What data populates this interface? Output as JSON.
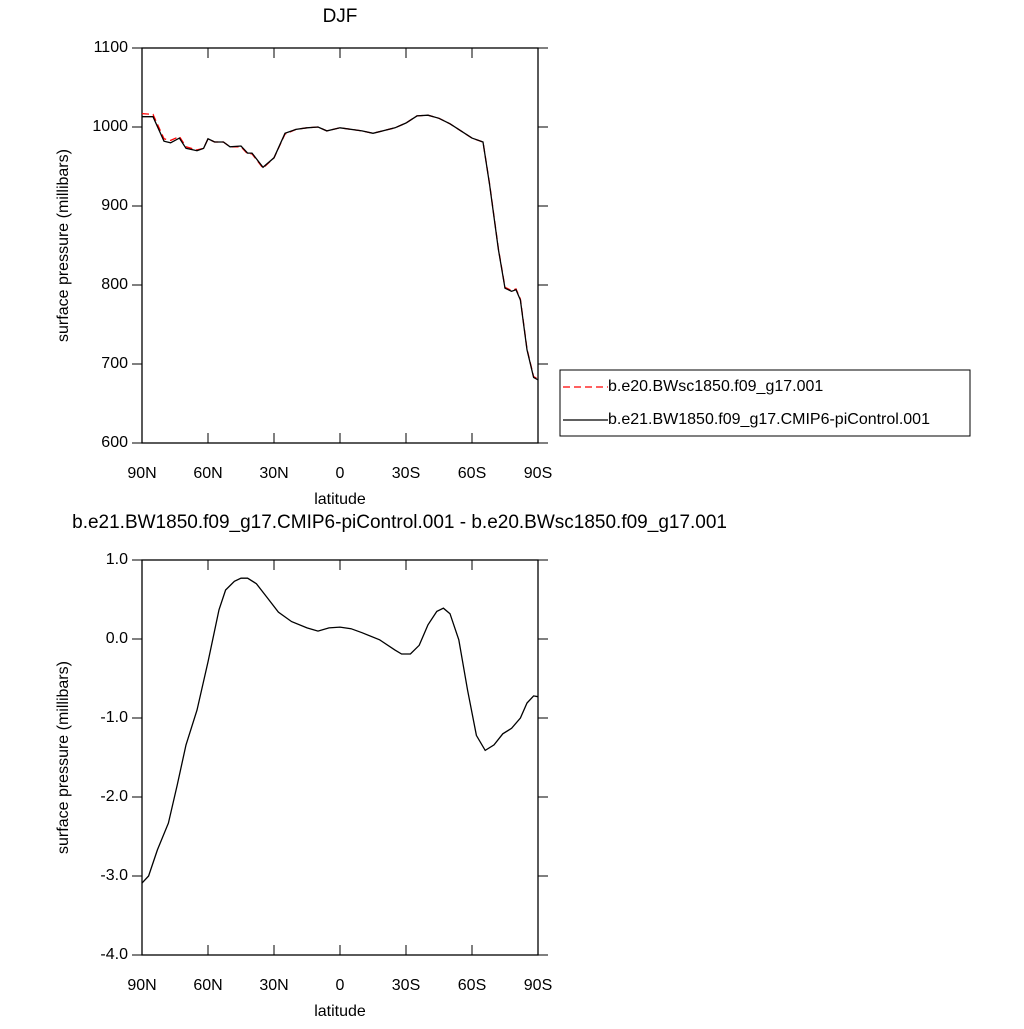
{
  "chart_data": [
    {
      "type": "line",
      "title": "DJF",
      "xlabel": "latitude",
      "ylabel": "surface pressure (millibars)",
      "x": [
        90,
        85,
        80,
        77,
        73,
        70,
        65,
        62,
        60,
        57,
        53,
        50,
        45,
        42,
        40,
        35,
        30,
        25,
        20,
        15,
        10,
        6,
        0,
        -10,
        -15,
        -25,
        -30,
        -35,
        -40,
        -45,
        -50,
        -55,
        -60,
        -65,
        -68,
        -72,
        -75,
        -78,
        -80,
        -82,
        -85,
        -88,
        -90
      ],
      "series": [
        {
          "name": "b.e20.BWsc1850.f09_g17.001",
          "color": "#ff0000",
          "dash": true,
          "values": [
            1017,
            1016,
            985,
            983,
            988,
            975,
            971,
            973,
            985,
            981,
            981,
            975,
            975,
            966,
            966,
            948,
            961,
            991,
            997,
            999,
            1000,
            995,
            999,
            995,
            992,
            999,
            1005,
            1014,
            1015,
            1011,
            1004,
            995,
            986,
            981,
            928,
            846,
            797,
            793,
            795,
            782,
            719,
            684,
            681
          ]
        },
        {
          "name": "b.e21.BW1850.f09_g17.CMIP6-piControl.001",
          "color": "#000000",
          "dash": false,
          "values": [
            1013,
            1013,
            982,
            980,
            986,
            973,
            970,
            973,
            985,
            981,
            981,
            975,
            976,
            967,
            967,
            949,
            961,
            992,
            997,
            999,
            1000,
            995,
            999,
            995,
            992,
            999,
            1005,
            1014,
            1015,
            1011,
            1004,
            995,
            986,
            981,
            927,
            845,
            796,
            792,
            794,
            781,
            718,
            683,
            680
          ]
        }
      ],
      "legend": "right",
      "xlim": [
        90,
        -90
      ],
      "xticks": [
        {
          "value": 90,
          "label": "90N"
        },
        {
          "value": 60,
          "label": "60N"
        },
        {
          "value": 30,
          "label": "30N"
        },
        0,
        {
          "value": -30,
          "label": "30S"
        },
        {
          "value": -60,
          "label": "60S"
        },
        {
          "value": -90,
          "label": "90S"
        }
      ],
      "ylim": [
        600,
        1100
      ],
      "yticks": [
        600,
        700,
        800,
        900,
        1000,
        1100
      ]
    },
    {
      "type": "line",
      "title": "b.e21.BW1850.f09_g17.CMIP6-piControl.001 - b.e20.BWsc1850.f09_g17.001",
      "xlabel": "latitude",
      "ylabel": "surface pressure (millibars)",
      "x": [
        90,
        87,
        83,
        78,
        74,
        70,
        65,
        60,
        55,
        52,
        48,
        45,
        42,
        38,
        33,
        28,
        22,
        15,
        10,
        5,
        0,
        -5,
        -10,
        -18,
        -25,
        -28,
        -32,
        -36,
        -40,
        -44,
        -47,
        -50,
        -54,
        -58,
        -62,
        -66,
        -70,
        -74,
        -78,
        -82,
        -85,
        -88,
        -90
      ],
      "series": [
        {
          "color": "#000000",
          "dash": false,
          "values": [
            -3.09,
            -3.0,
            -2.67,
            -2.33,
            -1.85,
            -1.34,
            -0.9,
            -0.29,
            0.37,
            0.62,
            0.73,
            0.77,
            0.77,
            0.7,
            0.52,
            0.34,
            0.22,
            0.14,
            0.1,
            0.14,
            0.15,
            0.13,
            0.08,
            -0.01,
            -0.14,
            -0.19,
            -0.19,
            -0.08,
            0.18,
            0.35,
            0.39,
            0.32,
            -0.01,
            -0.65,
            -1.22,
            -1.41,
            -1.34,
            -1.2,
            -1.13,
            -1.0,
            -0.81,
            -0.72,
            -0.73
          ]
        }
      ],
      "xlim": [
        90,
        -90
      ],
      "xticks": [
        {
          "value": 90,
          "label": "90N"
        },
        {
          "value": 60,
          "label": "60N"
        },
        {
          "value": 30,
          "label": "30N"
        },
        0,
        {
          "value": -30,
          "label": "30S"
        },
        {
          "value": -60,
          "label": "60S"
        },
        {
          "value": -90,
          "label": "90S"
        }
      ],
      "ylim": [
        -4,
        1
      ],
      "yticks": [
        {
          "value": -4,
          "label": "-4.0"
        },
        {
          "value": -3,
          "label": "-3.0"
        },
        {
          "value": -2,
          "label": "-2.0"
        },
        {
          "value": -1,
          "label": "-1.0"
        },
        {
          "value": 0,
          "label": "0.0"
        },
        {
          "value": 1,
          "label": "1.0"
        }
      ]
    }
  ]
}
